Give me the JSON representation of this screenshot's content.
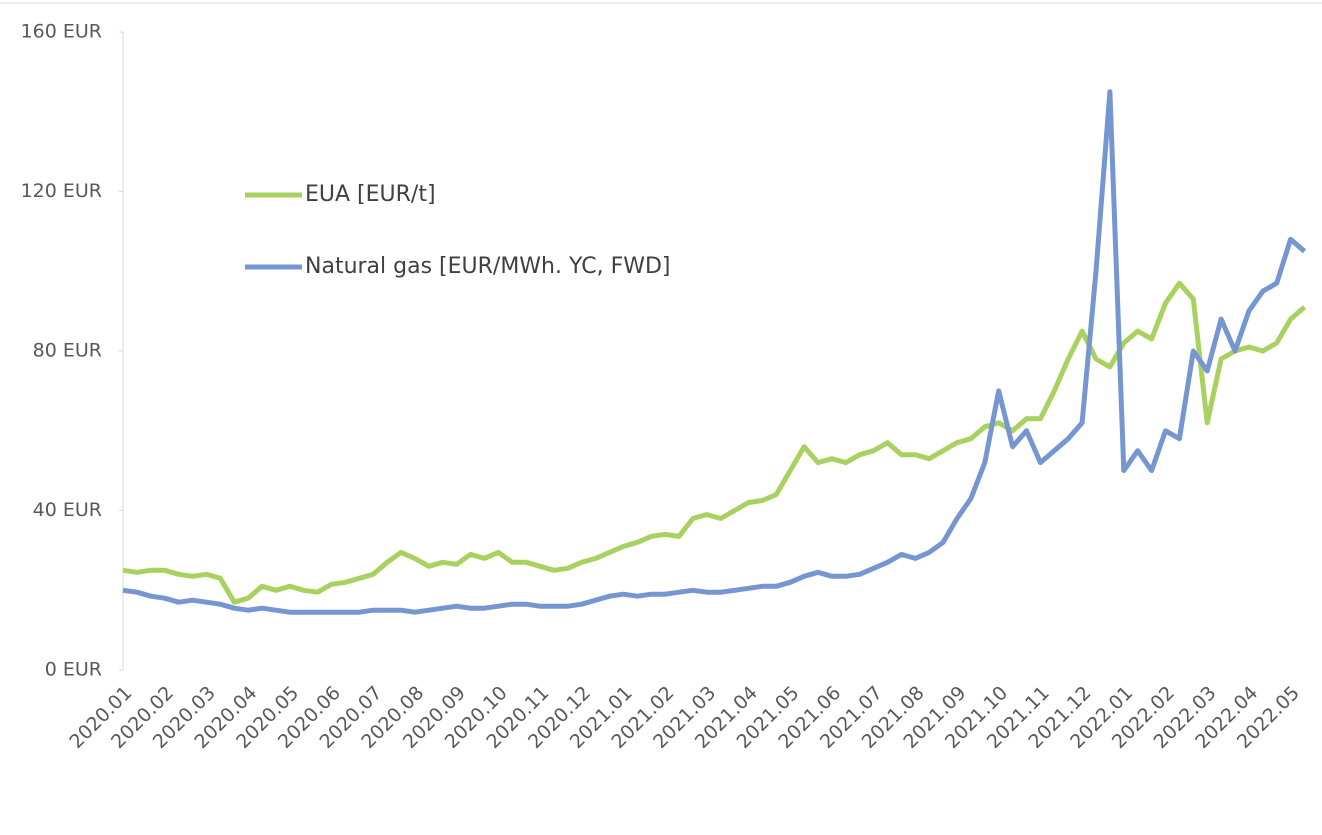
{
  "chart_data": {
    "type": "line",
    "categories": [
      "2020.01",
      null,
      null,
      "2020.02",
      null,
      null,
      "2020.03",
      null,
      null,
      "2020.04",
      null,
      null,
      "2020.05",
      null,
      null,
      "2020.06",
      null,
      null,
      "2020.07",
      null,
      null,
      "2020.08",
      null,
      null,
      "2020.09",
      null,
      null,
      "2020.10",
      null,
      null,
      "2020.11",
      null,
      null,
      "2020.12",
      null,
      null,
      "2021.01",
      null,
      null,
      "2021.02",
      null,
      null,
      "2021.03",
      null,
      null,
      "2021.04",
      null,
      null,
      "2021.05",
      null,
      null,
      "2021.06",
      null,
      null,
      "2021.07",
      null,
      null,
      "2021.08",
      null,
      null,
      "2021.09",
      null,
      null,
      "2021.10",
      null,
      null,
      "2021.11",
      null,
      null,
      "2021.12",
      null,
      null,
      "2022.01",
      null,
      null,
      "2022.02",
      null,
      null,
      "2022.03",
      null,
      null,
      "2022.04",
      null,
      null,
      "2022.05",
      null
    ],
    "series": [
      {
        "name": "EUA [EUR/t]",
        "color": "#a9d15f",
        "values": [
          25,
          24.5,
          25,
          25,
          24,
          23.5,
          24,
          23,
          17,
          18,
          21,
          20,
          21,
          20,
          19.5,
          21.5,
          22,
          23,
          24,
          27,
          29.5,
          28,
          26,
          27,
          26.5,
          29,
          28,
          29.5,
          27,
          27,
          26,
          25,
          25.5,
          27,
          28,
          29.5,
          31,
          32,
          33.5,
          34,
          33.5,
          38,
          39,
          38,
          40,
          42,
          42.5,
          44,
          50,
          56,
          52,
          53,
          52,
          54,
          55,
          57,
          54,
          54,
          53,
          55,
          57,
          58,
          61,
          62,
          60,
          63,
          63,
          70,
          78,
          85,
          78,
          76,
          82,
          85,
          83,
          92,
          97,
          93,
          62,
          78,
          80,
          81,
          80,
          82,
          88,
          91
        ]
      },
      {
        "name": "Natural gas [EUR/MWh. YC, FWD]",
        "color": "#7596d1",
        "values": [
          20,
          19.5,
          18.5,
          18,
          17,
          17.5,
          17,
          16.5,
          15.5,
          15,
          15.5,
          15,
          14.5,
          14.5,
          14.5,
          14.5,
          14.5,
          14.5,
          15,
          15,
          15,
          14.5,
          15,
          15.5,
          16,
          15.5,
          15.5,
          16,
          16.5,
          16.5,
          16,
          16,
          16,
          16.5,
          17.5,
          18.5,
          19,
          18.5,
          19,
          19,
          19.5,
          20,
          19.5,
          19.5,
          20,
          20.5,
          21,
          21,
          22,
          23.5,
          24.5,
          23.5,
          23.5,
          24,
          25.5,
          27,
          29,
          28,
          29.5,
          32,
          38,
          43,
          52,
          70,
          56,
          60,
          52,
          55,
          58,
          62,
          100,
          145,
          50,
          55,
          50,
          60,
          58,
          80,
          75,
          88,
          80,
          90,
          95,
          97,
          108,
          105
        ]
      }
    ],
    "ylim": [
      0,
      160
    ],
    "yticks": [
      {
        "value": 0,
        "label": "0 EUR"
      },
      {
        "value": 40,
        "label": "40 EUR"
      },
      {
        "value": 80,
        "label": "80 EUR"
      },
      {
        "value": 120,
        "label": "120 EUR"
      },
      {
        "value": 160,
        "label": "160 EUR"
      }
    ],
    "grid": false,
    "legend": "upper left"
  }
}
